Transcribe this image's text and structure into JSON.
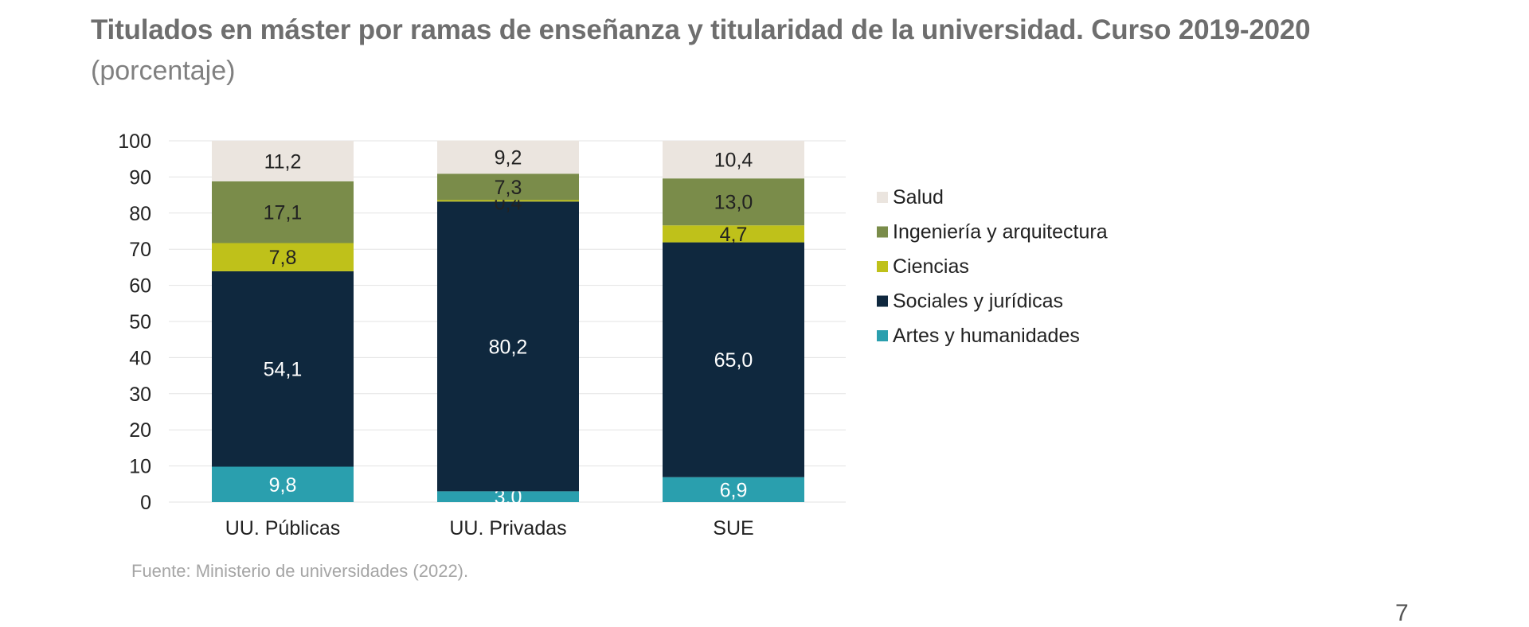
{
  "title": "Titulados en máster por ramas de enseñanza y titularidad de la universidad. Curso 2019-2020",
  "subtitle": "(porcentaje)",
  "source": "Fuente: Ministerio de universidades (2022).",
  "page_number": "7",
  "chart_data": {
    "type": "bar",
    "stacked": true,
    "categories": [
      "UU. Públicas",
      "UU. Privadas",
      "SUE"
    ],
    "ylim": [
      0,
      100
    ],
    "yticks": [
      0,
      10,
      20,
      30,
      40,
      50,
      60,
      70,
      80,
      90,
      100
    ],
    "grid": true,
    "legend_position": "right",
    "series": [
      {
        "name": "Artes y humanidades",
        "color": "#2a9fae",
        "values": [
          9.8,
          3.0,
          6.9
        ],
        "labels": [
          "9,8",
          "3,0",
          "6,9"
        ],
        "label_color": "#ffffff"
      },
      {
        "name": "Sociales y jurídicas",
        "color": "#0f283e",
        "values": [
          54.1,
          80.2,
          65.0
        ],
        "labels": [
          "54,1",
          "80,2",
          "65,0"
        ],
        "label_color": "#ffffff"
      },
      {
        "name": "Ciencias",
        "color": "#bfc11a",
        "values": [
          7.8,
          0.4,
          4.7
        ],
        "labels": [
          "7,8",
          "0,4",
          "4,7"
        ],
        "label_color": "#222222"
      },
      {
        "name": "Ingeniería y arquitectura",
        "color": "#7a8c4a",
        "values": [
          17.1,
          7.3,
          13.0
        ],
        "labels": [
          "17,1",
          "7,3",
          "13,0"
        ],
        "label_color": "#222222"
      },
      {
        "name": "Salud",
        "color": "#ebe5df",
        "values": [
          11.2,
          9.2,
          10.4
        ],
        "labels": [
          "11,2",
          "9,2",
          "10,4"
        ],
        "label_color": "#222222"
      }
    ]
  }
}
